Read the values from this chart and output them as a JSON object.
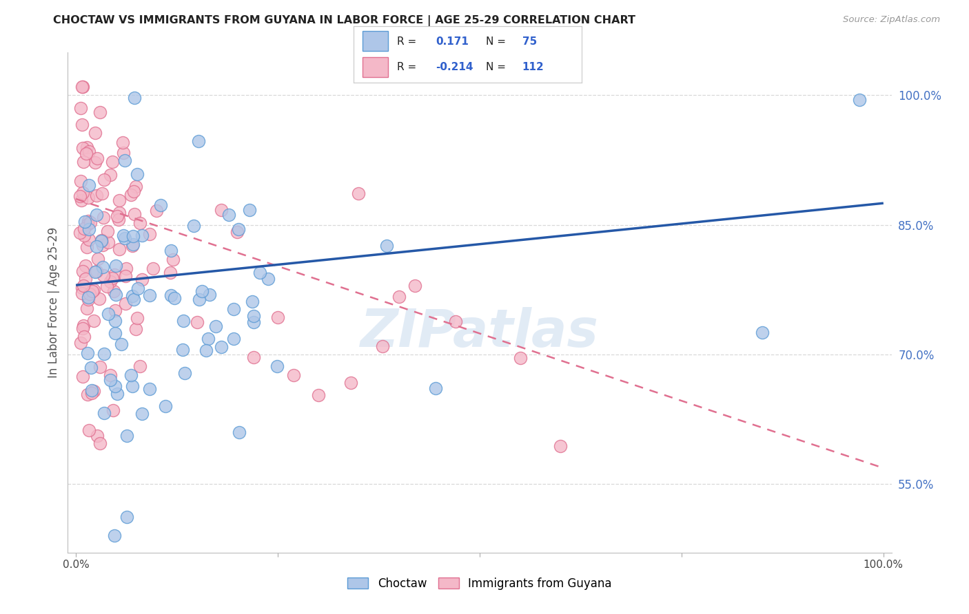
{
  "title": "CHOCTAW VS IMMIGRANTS FROM GUYANA IN LABOR FORCE | AGE 25-29 CORRELATION CHART",
  "source": "Source: ZipAtlas.com",
  "ylabel": "In Labor Force | Age 25-29",
  "right_yticks": [
    0.55,
    0.7,
    0.85,
    1.0
  ],
  "right_yticklabels": [
    "55.0%",
    "70.0%",
    "85.0%",
    "100.0%"
  ],
  "xlim": [
    -0.01,
    1.01
  ],
  "ylim": [
    0.47,
    1.05
  ],
  "choctaw_color": "#aec6e8",
  "choctaw_edge": "#5b9bd5",
  "guyana_color": "#f4b8c8",
  "guyana_edge": "#e07090",
  "legend_R_choctaw": "0.171",
  "legend_N_choctaw": "75",
  "legend_R_guyana": "-0.214",
  "legend_N_guyana": "112",
  "watermark": "ZIPatlas",
  "blue_trend_x": [
    0.0,
    1.0
  ],
  "blue_trend_y": [
    0.78,
    0.875
  ],
  "pink_trend_x": [
    0.0,
    1.0
  ],
  "pink_trend_y": [
    0.88,
    0.568
  ],
  "grid_color": "#d8d8d8",
  "title_color": "#222222",
  "right_axis_color": "#4472c4"
}
